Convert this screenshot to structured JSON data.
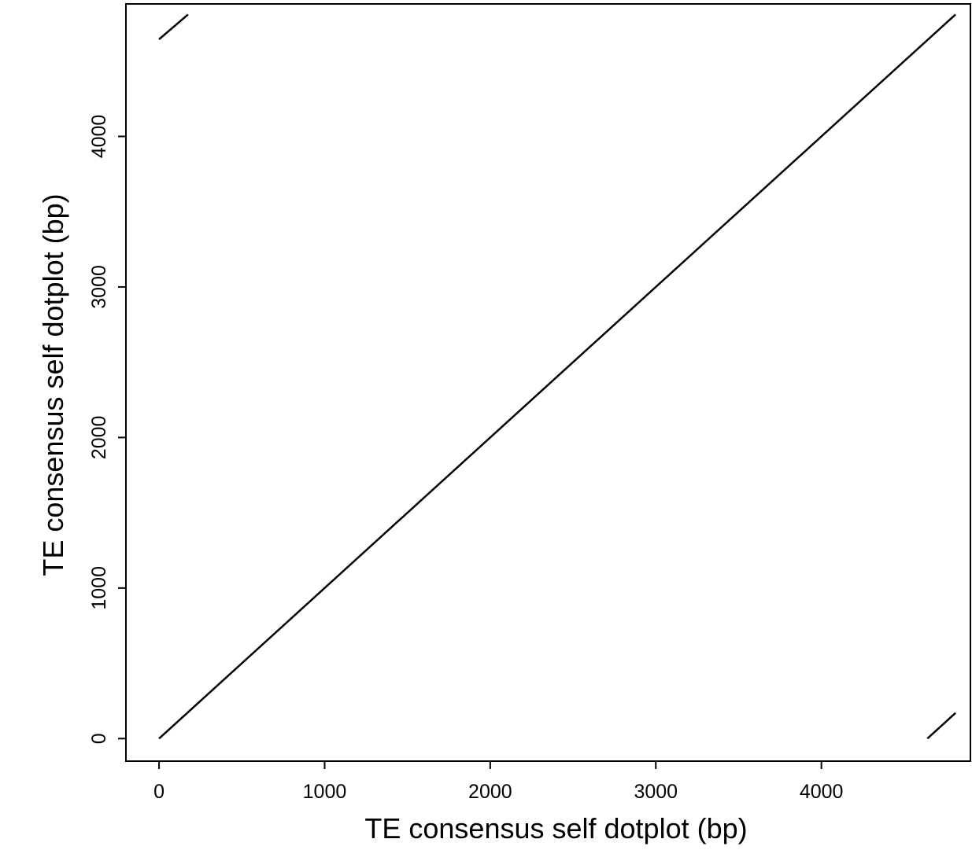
{
  "chart_data": {
    "type": "line",
    "title": "",
    "xlabel": "TE consensus self dotplot (bp)",
    "ylabel": "TE consensus self dotplot (bp)",
    "xlim": [
      -200,
      4900
    ],
    "ylim": [
      -150,
      4880
    ],
    "x_ticks": [
      0,
      1000,
      2000,
      3000,
      4000
    ],
    "y_ticks": [
      0,
      1000,
      2000,
      3000,
      4000
    ],
    "x_tick_labels": [
      "0",
      "1000",
      "2000",
      "3000",
      "4000"
    ],
    "y_tick_labels": [
      "0",
      "1000",
      "2000",
      "3000",
      "4000"
    ],
    "grid": false,
    "line_color": "#000000",
    "segments": [
      {
        "x": [
          0,
          4810
        ],
        "y": [
          0,
          4810
        ]
      },
      {
        "x": [
          0,
          175
        ],
        "y": [
          4645,
          4810
        ]
      },
      {
        "x": [
          4640,
          4810
        ],
        "y": [
          0,
          170
        ]
      }
    ]
  }
}
